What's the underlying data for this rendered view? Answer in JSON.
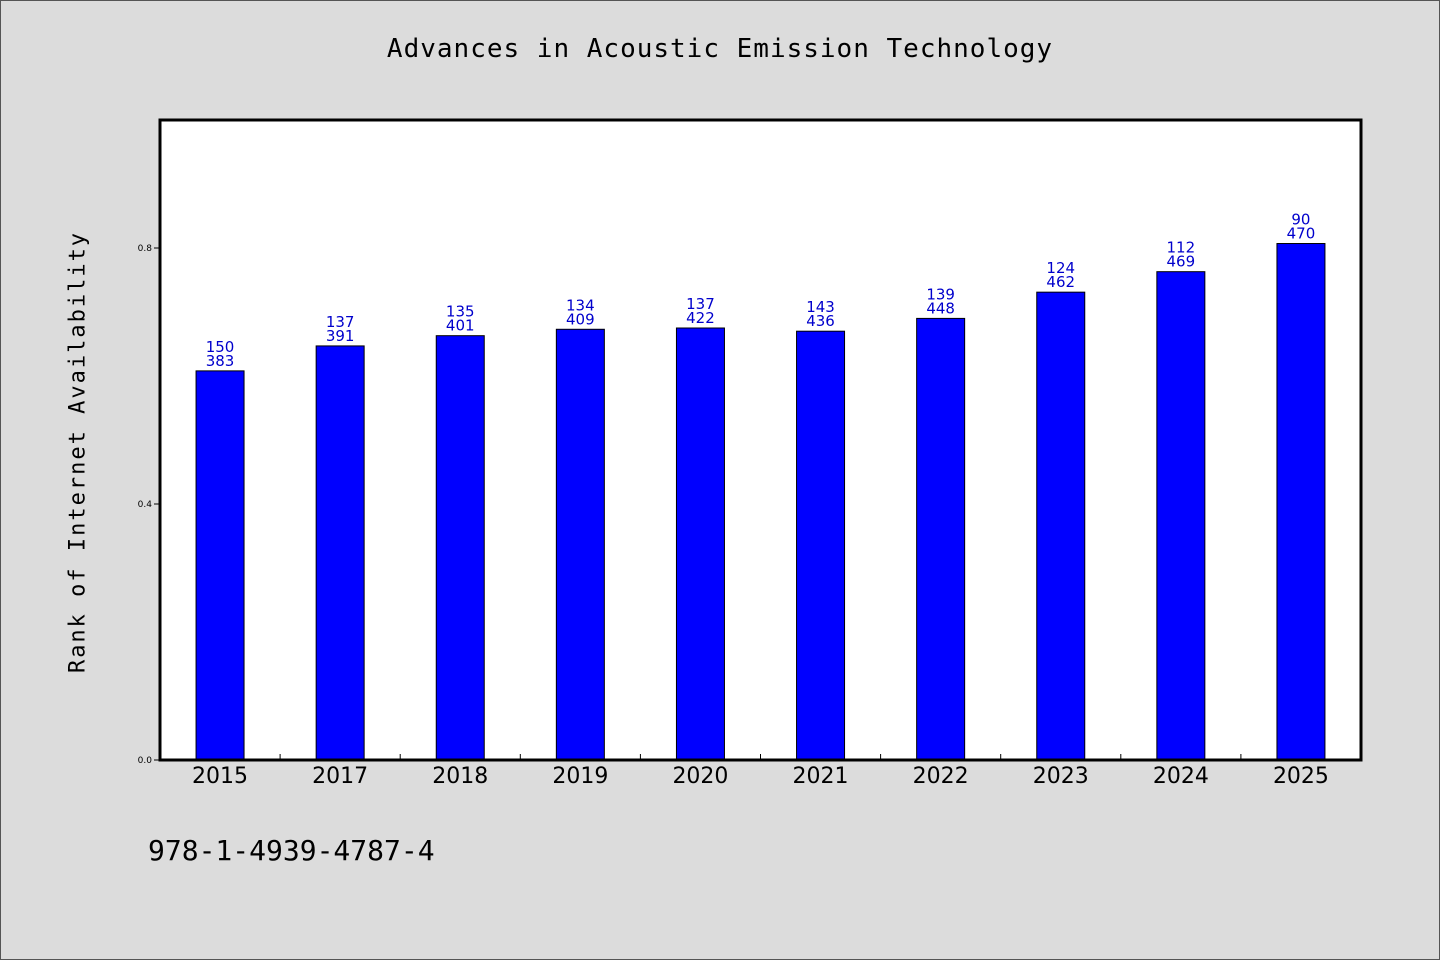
{
  "chart_data": {
    "type": "bar",
    "title": "Advances in Acoustic Emission Technology",
    "xlabel": "",
    "ylabel": "Rank of Internet Availability",
    "ylim": [
      0,
      1.0
    ],
    "yticks": [
      0.0,
      0.4,
      0.8
    ],
    "grid": false,
    "legend": "none",
    "categories": [
      "2015",
      "2017",
      "2018",
      "2019",
      "2020",
      "2021",
      "2022",
      "2023",
      "2024",
      "2025"
    ],
    "values": [
      0.608,
      0.647,
      0.663,
      0.673,
      0.675,
      0.67,
      0.69,
      0.731,
      0.763,
      0.807
    ],
    "bar_labels_top": [
      "150",
      "137",
      "135",
      "134",
      "137",
      "143",
      "139",
      "124",
      "112",
      "90"
    ],
    "bar_labels_bottom": [
      "383",
      "391",
      "401",
      "409",
      "422",
      "436",
      "448",
      "462",
      "469",
      "470"
    ],
    "bar_color": "#0000ff",
    "label_color": "#0000cc"
  },
  "footer": {
    "isbn": "978-1-4939-4787-4"
  }
}
